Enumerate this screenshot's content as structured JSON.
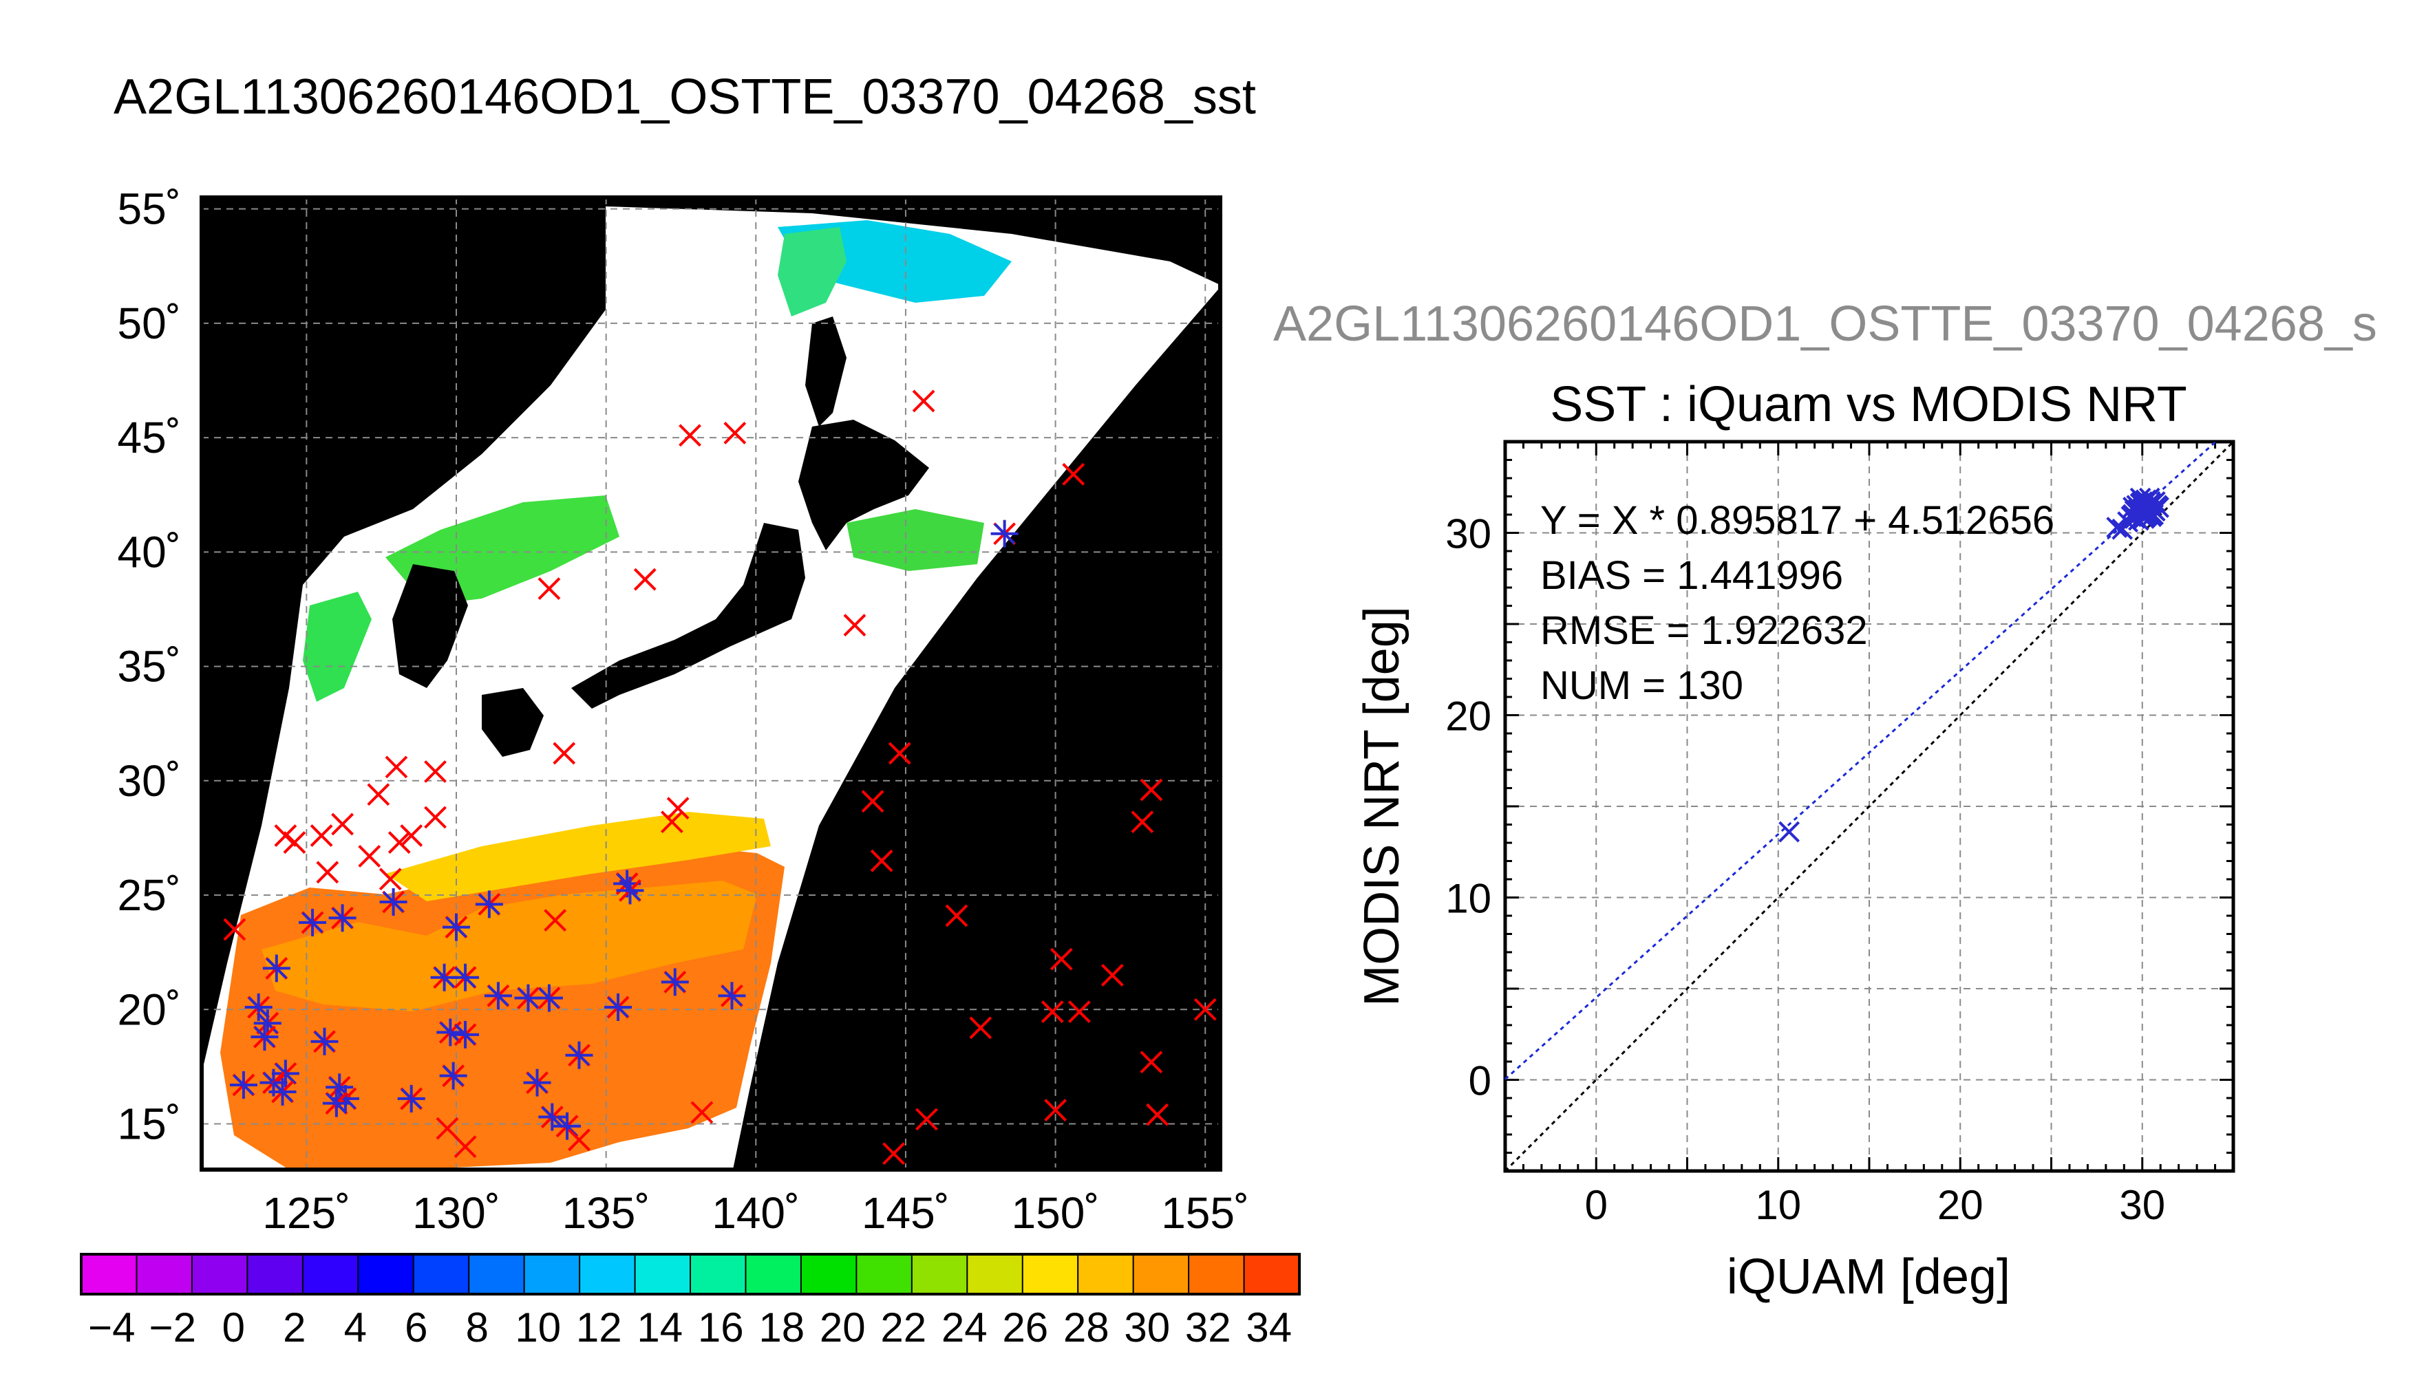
{
  "page_title": "A2GL11306260146OD1_OSTTE_03370_04268_sst",
  "secondary_title": "A2GL11306260146OD1_OSTTE_03370_04268_s",
  "colors": {
    "in_situ_marker": "#ff0000",
    "matched_marker": "#2a2ad0",
    "fit_line": "#1a2ad8",
    "identity_line": "#000000",
    "grid": "#8a8a8a"
  },
  "colorbar": {
    "tick_labels": [
      "−4",
      "−2",
      "0",
      "2",
      "4",
      "6",
      "8",
      "10",
      "12",
      "14",
      "16",
      "18",
      "20",
      "22",
      "24",
      "26",
      "28",
      "30",
      "32",
      "34"
    ],
    "range": [
      -5,
      35
    ],
    "colors": [
      "#e400f0",
      "#c000f0",
      "#9000f0",
      "#6000f0",
      "#3000ff",
      "#0000ff",
      "#0040ff",
      "#0070ff",
      "#00a0ff",
      "#00c8ff",
      "#00e8e0",
      "#00f0a0",
      "#00f060",
      "#00e000",
      "#40e000",
      "#90e000",
      "#d0e000",
      "#ffe000",
      "#ffc000",
      "#ff9800",
      "#ff7000",
      "#ff4000"
    ]
  },
  "chart_data": [
    {
      "type": "heatmap",
      "title": "",
      "x_tick_labels": [
        "125˚",
        "130˚",
        "135˚",
        "140˚",
        "145˚",
        "150˚",
        "155˚"
      ],
      "y_tick_labels": [
        "55˚",
        "50˚",
        "45˚",
        "40˚",
        "35˚",
        "30˚",
        "25˚",
        "20˚",
        "15˚"
      ],
      "xlim": [
        121.5,
        155.5
      ],
      "ylim": [
        13,
        55.5
      ],
      "variable": "sst",
      "units": "deg",
      "grid": true,
      "markers": [
        {
          "lon": 137.8,
          "lat": 45.1,
          "matched": false
        },
        {
          "lon": 139.3,
          "lat": 45.2,
          "matched": false
        },
        {
          "lon": 145.6,
          "lat": 46.6,
          "matched": false
        },
        {
          "lon": 150.6,
          "lat": 43.4,
          "matched": false
        },
        {
          "lon": 148.3,
          "lat": 40.8,
          "matched": true
        },
        {
          "lon": 133.1,
          "lat": 38.4,
          "matched": false
        },
        {
          "lon": 136.3,
          "lat": 38.8,
          "matched": false
        },
        {
          "lon": 143.3,
          "lat": 36.8,
          "matched": false
        },
        {
          "lon": 133.6,
          "lat": 31.2,
          "matched": false
        },
        {
          "lon": 144.8,
          "lat": 31.2,
          "matched": false
        },
        {
          "lon": 128.0,
          "lat": 30.6,
          "matched": false
        },
        {
          "lon": 129.3,
          "lat": 30.4,
          "matched": false
        },
        {
          "lon": 127.4,
          "lat": 29.4,
          "matched": false
        },
        {
          "lon": 137.4,
          "lat": 28.8,
          "matched": false
        },
        {
          "lon": 143.9,
          "lat": 29.1,
          "matched": false
        },
        {
          "lon": 153.2,
          "lat": 29.6,
          "matched": false
        },
        {
          "lon": 152.9,
          "lat": 28.2,
          "matched": false
        },
        {
          "lon": 126.2,
          "lat": 28.1,
          "matched": false
        },
        {
          "lon": 129.3,
          "lat": 28.4,
          "matched": false
        },
        {
          "lon": 137.2,
          "lat": 28.2,
          "matched": false
        },
        {
          "lon": 124.3,
          "lat": 27.6,
          "matched": false
        },
        {
          "lon": 124.6,
          "lat": 27.3,
          "matched": false
        },
        {
          "lon": 125.5,
          "lat": 27.6,
          "matched": false
        },
        {
          "lon": 128.1,
          "lat": 27.3,
          "matched": false
        },
        {
          "lon": 128.5,
          "lat": 27.6,
          "matched": false
        },
        {
          "lon": 127.1,
          "lat": 26.7,
          "matched": false
        },
        {
          "lon": 144.2,
          "lat": 26.5,
          "matched": false
        },
        {
          "lon": 125.7,
          "lat": 26.0,
          "matched": false
        },
        {
          "lon": 127.8,
          "lat": 25.7,
          "matched": false
        },
        {
          "lon": 135.7,
          "lat": 25.5,
          "matched": true
        },
        {
          "lon": 127.9,
          "lat": 24.7,
          "matched": true
        },
        {
          "lon": 131.1,
          "lat": 24.6,
          "matched": true
        },
        {
          "lon": 135.8,
          "lat": 25.2,
          "matched": true
        },
        {
          "lon": 126.2,
          "lat": 24.0,
          "matched": true
        },
        {
          "lon": 125.2,
          "lat": 23.8,
          "matched": true
        },
        {
          "lon": 130.0,
          "lat": 23.6,
          "matched": true
        },
        {
          "lon": 133.3,
          "lat": 23.9,
          "matched": false
        },
        {
          "lon": 146.7,
          "lat": 24.1,
          "matched": false
        },
        {
          "lon": 122.6,
          "lat": 23.5,
          "matched": false
        },
        {
          "lon": 124.0,
          "lat": 21.8,
          "matched": true
        },
        {
          "lon": 129.6,
          "lat": 21.4,
          "matched": true
        },
        {
          "lon": 130.3,
          "lat": 21.4,
          "matched": true
        },
        {
          "lon": 137.3,
          "lat": 21.2,
          "matched": true
        },
        {
          "lon": 150.2,
          "lat": 22.2,
          "matched": false
        },
        {
          "lon": 151.9,
          "lat": 21.5,
          "matched": false
        },
        {
          "lon": 131.4,
          "lat": 20.6,
          "matched": true
        },
        {
          "lon": 132.4,
          "lat": 20.5,
          "matched": true
        },
        {
          "lon": 133.1,
          "lat": 20.5,
          "matched": true
        },
        {
          "lon": 135.4,
          "lat": 20.1,
          "matched": true
        },
        {
          "lon": 139.2,
          "lat": 20.6,
          "matched": true
        },
        {
          "lon": 123.4,
          "lat": 20.1,
          "matched": true
        },
        {
          "lon": 123.7,
          "lat": 19.4,
          "matched": true
        },
        {
          "lon": 123.6,
          "lat": 18.8,
          "matched": true
        },
        {
          "lon": 125.6,
          "lat": 18.6,
          "matched": true
        },
        {
          "lon": 129.8,
          "lat": 19.0,
          "matched": true
        },
        {
          "lon": 130.3,
          "lat": 18.9,
          "matched": true
        },
        {
          "lon": 147.5,
          "lat": 19.2,
          "matched": false
        },
        {
          "lon": 149.9,
          "lat": 19.9,
          "matched": false
        },
        {
          "lon": 150.8,
          "lat": 19.9,
          "matched": false
        },
        {
          "lon": 155.0,
          "lat": 20.0,
          "matched": false
        },
        {
          "lon": 134.1,
          "lat": 18.0,
          "matched": true
        },
        {
          "lon": 153.2,
          "lat": 17.7,
          "matched": false
        },
        {
          "lon": 124.3,
          "lat": 17.2,
          "matched": true
        },
        {
          "lon": 123.9,
          "lat": 16.8,
          "matched": true
        },
        {
          "lon": 124.2,
          "lat": 16.4,
          "matched": true
        },
        {
          "lon": 122.9,
          "lat": 16.7,
          "matched": true
        },
        {
          "lon": 126.1,
          "lat": 16.6,
          "matched": true
        },
        {
          "lon": 126.3,
          "lat": 16.1,
          "matched": true
        },
        {
          "lon": 126.0,
          "lat": 15.9,
          "matched": true
        },
        {
          "lon": 128.5,
          "lat": 16.1,
          "matched": true
        },
        {
          "lon": 129.9,
          "lat": 17.1,
          "matched": true
        },
        {
          "lon": 132.7,
          "lat": 16.8,
          "matched": true
        },
        {
          "lon": 133.2,
          "lat": 15.3,
          "matched": true
        },
        {
          "lon": 133.7,
          "lat": 14.9,
          "matched": true
        },
        {
          "lon": 129.7,
          "lat": 14.8,
          "matched": false
        },
        {
          "lon": 130.3,
          "lat": 14.0,
          "matched": false
        },
        {
          "lon": 134.1,
          "lat": 14.3,
          "matched": false
        },
        {
          "lon": 138.2,
          "lat": 15.5,
          "matched": false
        },
        {
          "lon": 145.7,
          "lat": 15.2,
          "matched": false
        },
        {
          "lon": 144.6,
          "lat": 13.7,
          "matched": false
        },
        {
          "lon": 150.0,
          "lat": 15.6,
          "matched": false
        },
        {
          "lon": 153.4,
          "lat": 15.4,
          "matched": false
        }
      ]
    },
    {
      "type": "scatter",
      "title": "SST : iQuam vs MODIS NRT",
      "xlabel": "iQUAM [deg]",
      "ylabel": "MODIS NRT [deg]",
      "xlim": [
        -5,
        35
      ],
      "ylim": [
        -5,
        35
      ],
      "x_tick_labels": [
        "0",
        "10",
        "20",
        "30"
      ],
      "y_tick_labels": [
        "0",
        "10",
        "20",
        "30"
      ],
      "grid": true,
      "stats": [
        "Y = X * 0.895817 + 4.512656",
        "BIAS = 1.441996",
        "RMSE = 1.922632",
        "NUM = 130"
      ],
      "fit": {
        "slope": 0.895817,
        "intercept": 4.512656
      },
      "points": [
        [
          10.6,
          13.6
        ],
        [
          28.6,
          30.3
        ],
        [
          28.9,
          30.2
        ],
        [
          29.2,
          30.6
        ],
        [
          29.4,
          30.9
        ],
        [
          29.5,
          31.0
        ],
        [
          29.6,
          31.2
        ],
        [
          29.7,
          31.5
        ],
        [
          29.8,
          31.3
        ],
        [
          29.9,
          31.6
        ],
        [
          30.0,
          31.1
        ],
        [
          30.0,
          31.7
        ],
        [
          30.1,
          31.4
        ],
        [
          30.2,
          31.8
        ],
        [
          30.2,
          30.9
        ],
        [
          30.3,
          31.5
        ],
        [
          30.4,
          31.2
        ],
        [
          30.4,
          31.9
        ],
        [
          30.5,
          31.6
        ],
        [
          30.6,
          31.3
        ],
        [
          30.6,
          31.0
        ],
        [
          30.7,
          31.7
        ],
        [
          30.8,
          31.5
        ],
        [
          30.9,
          31.4
        ],
        [
          29.8,
          30.7
        ],
        [
          30.1,
          30.8
        ],
        [
          30.5,
          30.9
        ],
        [
          29.5,
          31.4
        ],
        [
          30.3,
          31.0
        ],
        [
          30.7,
          31.2
        ],
        [
          29.9,
          31.9
        ],
        [
          30.2,
          31.2
        ],
        [
          30.4,
          31.6
        ],
        [
          30.0,
          31.3
        ],
        [
          29.6,
          30.8
        ]
      ]
    }
  ]
}
